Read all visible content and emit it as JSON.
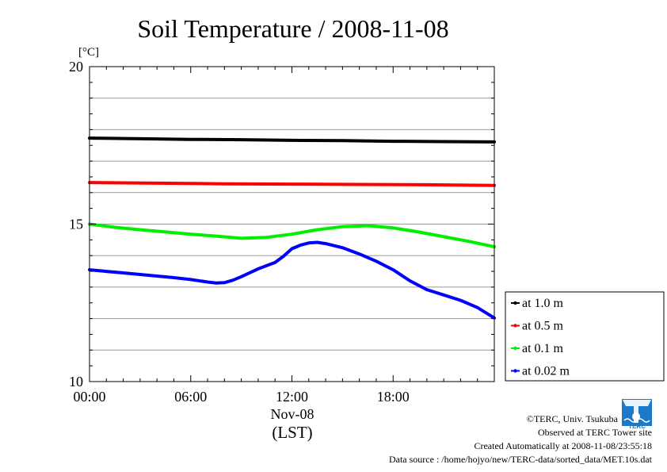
{
  "chart_data": {
    "type": "line",
    "title": "Soil Temperature / 2008-11-08",
    "ylabel": "[°C]",
    "xlabel": "(LST)",
    "date_label": "Nov-08",
    "xlim": [
      0,
      24
    ],
    "ylim": [
      10,
      20
    ],
    "xticks": [
      {
        "value": 0,
        "label": "00:00"
      },
      {
        "value": 6,
        "label": "06:00"
      },
      {
        "value": 12,
        "label": "12:00"
      },
      {
        "value": 18,
        "label": "18:00"
      }
    ],
    "yticks": [
      {
        "value": 10,
        "label": "10"
      },
      {
        "value": 15,
        "label": "15"
      },
      {
        "value": 20,
        "label": "20"
      }
    ],
    "y_minor_step": 1,
    "grid": true,
    "legend_position": "right",
    "series": [
      {
        "name": "at 1.0 m",
        "color": "#000000",
        "x": [
          0,
          3,
          6,
          9,
          12,
          15,
          18,
          21,
          24
        ],
        "y": [
          17.73,
          17.71,
          17.69,
          17.68,
          17.66,
          17.65,
          17.63,
          17.62,
          17.61
        ]
      },
      {
        "name": "at 0.5 m",
        "color": "#ff0000",
        "x": [
          0,
          4,
          8,
          12,
          16,
          20,
          24
        ],
        "y": [
          16.32,
          16.3,
          16.28,
          16.27,
          16.26,
          16.25,
          16.23
        ]
      },
      {
        "name": "at 0.1 m",
        "color": "#00ee00",
        "x": [
          0,
          1.5,
          3,
          4.5,
          6,
          7.5,
          9,
          10.5,
          12,
          13.5,
          15,
          16.5,
          18,
          19.5,
          21,
          22.5,
          24
        ],
        "y": [
          15.0,
          14.9,
          14.82,
          14.75,
          14.68,
          14.62,
          14.55,
          14.58,
          14.68,
          14.82,
          14.92,
          14.95,
          14.88,
          14.75,
          14.6,
          14.45,
          14.28
        ]
      },
      {
        "name": "at 0.02 m",
        "color": "#0000ff",
        "x": [
          0,
          1,
          2,
          3,
          4,
          5,
          6,
          7,
          7.5,
          8,
          8.5,
          9,
          10,
          11,
          11.5,
          12,
          12.5,
          13,
          13.5,
          14,
          15,
          16,
          17,
          18,
          19,
          20,
          21,
          22,
          23,
          24
        ],
        "y": [
          13.55,
          13.5,
          13.45,
          13.4,
          13.35,
          13.3,
          13.24,
          13.16,
          13.13,
          13.14,
          13.22,
          13.33,
          13.58,
          13.78,
          13.98,
          14.22,
          14.33,
          14.4,
          14.42,
          14.38,
          14.25,
          14.05,
          13.82,
          13.55,
          13.2,
          12.92,
          12.75,
          12.58,
          12.35,
          12.02
        ]
      }
    ]
  },
  "credits": {
    "copyright": "©TERC, Univ. Tsukuba",
    "observed": "Observed at TERC Tower site",
    "created": "Created Automatically at 2008-11-08/23:55:18",
    "source": "Data source : /home/hojyo/new/TERC-data/sorted_data/MET.10s.dat"
  },
  "logo": {
    "text": "TERC",
    "color": "#1d78c8",
    "icon": "terc-logo-icon"
  }
}
